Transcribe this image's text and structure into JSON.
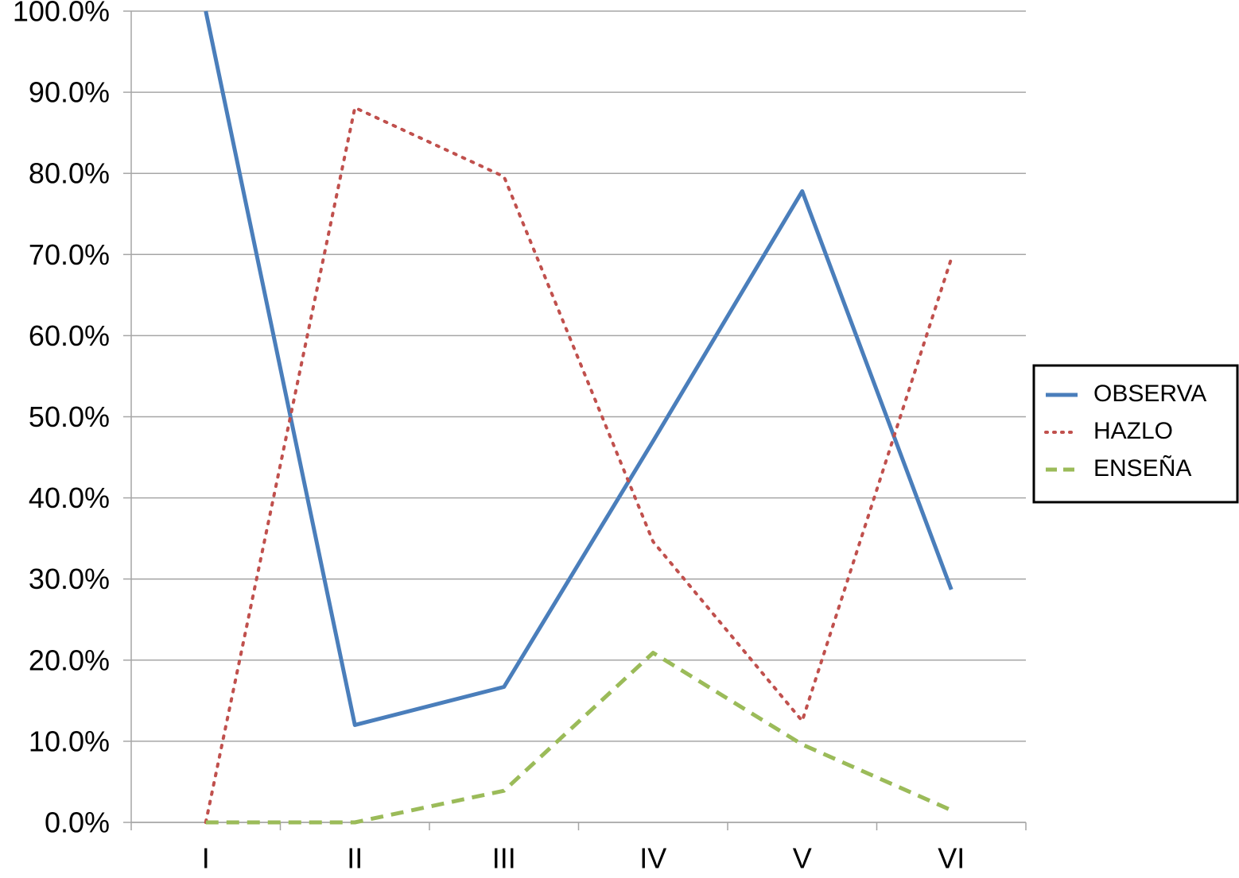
{
  "chart_data": {
    "type": "line",
    "categories": [
      "I",
      "II",
      "III",
      "IV",
      "V",
      "VI"
    ],
    "series": [
      {
        "name": "OBSERVA",
        "color": "#4a7ebb",
        "dash": "solid",
        "values": [
          100,
          12,
          16.7,
          47,
          77.8,
          28.7
        ]
      },
      {
        "name": "HAZLO",
        "color": "#c0504d",
        "dash": "dotted",
        "values": [
          0,
          88.1,
          79.6,
          34.6,
          12.5,
          69.5
        ]
      },
      {
        "name": "ENSEÑA",
        "color": "#9bbb59",
        "dash": "dashed",
        "values": [
          0,
          0,
          3.9,
          20.9,
          9.6,
          1.5
        ]
      }
    ],
    "ylim": [
      0,
      100
    ],
    "yticks": [
      {
        "value": 0,
        "label": "0.0%"
      },
      {
        "value": 10,
        "label": "10.0%"
      },
      {
        "value": 20,
        "label": "20.0%"
      },
      {
        "value": 30,
        "label": "30.0%"
      },
      {
        "value": 40,
        "label": "40.0%"
      },
      {
        "value": 50,
        "label": "50.0%"
      },
      {
        "value": 60,
        "label": "60.0%"
      },
      {
        "value": 70,
        "label": "70.0%"
      },
      {
        "value": 80,
        "label": "80.0%"
      },
      {
        "value": 90,
        "label": "90.0%"
      },
      {
        "value": 100,
        "label": "100.0%"
      }
    ],
    "grid": true,
    "legend": "right"
  }
}
